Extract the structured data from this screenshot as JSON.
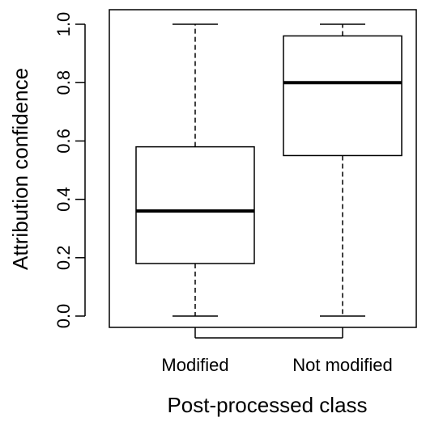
{
  "chart_data": {
    "type": "box",
    "xlabel": "Post-processed class",
    "ylabel": "Attribution confidence",
    "ylim": [
      0.0,
      1.0
    ],
    "yticks": [
      {
        "value": 0.0,
        "label": "0.0"
      },
      {
        "value": 0.2,
        "label": "0.2"
      },
      {
        "value": 0.4,
        "label": "0.4"
      },
      {
        "value": 0.6,
        "label": "0.6"
      },
      {
        "value": 0.8,
        "label": "0.8"
      },
      {
        "value": 1.0,
        "label": "1.0"
      }
    ],
    "categories": [
      "Modified",
      "Not modified"
    ],
    "boxes": [
      {
        "category": "Modified",
        "min": 0.0,
        "q1": 0.18,
        "median": 0.36,
        "q3": 0.58,
        "max": 1.0
      },
      {
        "category": "Not modified",
        "min": 0.0,
        "q1": 0.55,
        "median": 0.8,
        "q3": 0.96,
        "max": 1.0
      }
    ],
    "grid": false,
    "legend": "none"
  }
}
